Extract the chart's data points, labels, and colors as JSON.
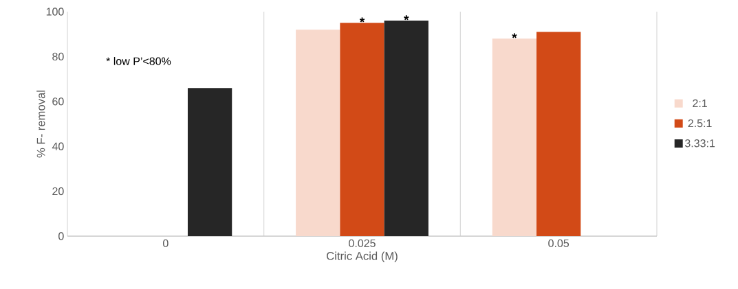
{
  "chart_data": {
    "type": "bar",
    "xlabel": "Citric Acid  (M)",
    "ylabel": "% F- removal",
    "categories": [
      "0",
      "0.025",
      "0.05"
    ],
    "series": [
      {
        "name": "2:1",
        "color": "#f8d9cc",
        "values": [
          null,
          92,
          88
        ],
        "value_labels": [
          null,
          null,
          "*"
        ]
      },
      {
        "name": "2.5:1",
        "color": "#d24a17",
        "values": [
          null,
          95,
          91
        ],
        "value_labels": [
          null,
          "*",
          null
        ]
      },
      {
        "name": "3.33:1",
        "color": "#262626",
        "values": [
          66,
          96,
          null
        ],
        "value_labels": [
          null,
          "*",
          null
        ]
      }
    ],
    "ylim": [
      0,
      100
    ],
    "yticks": [
      0,
      20,
      40,
      60,
      80,
      100
    ],
    "grid": "x",
    "legend": "right",
    "annotations": [
      "* low P’<80%"
    ]
  }
}
